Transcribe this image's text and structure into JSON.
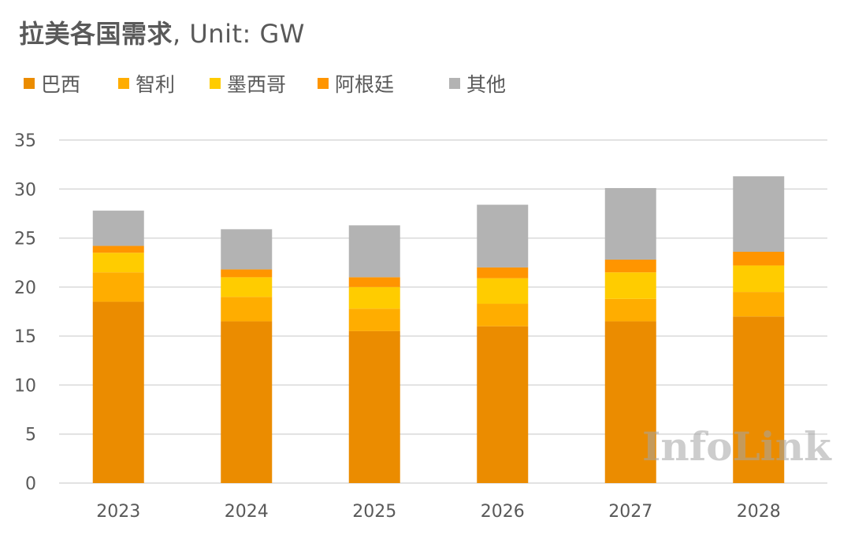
{
  "chart_data": {
    "type": "bar",
    "stacked": true,
    "title": "拉美各国需求",
    "title_unit": ", Unit: GW",
    "xlabel": "",
    "ylabel": "",
    "ylim": [
      0,
      35
    ],
    "yticks": [
      0,
      5,
      10,
      15,
      20,
      25,
      30,
      35
    ],
    "grid": true,
    "legend_position": "top-left",
    "categories": [
      "2023",
      "2024",
      "2025",
      "2026",
      "2027",
      "2028"
    ],
    "series": [
      {
        "name": "巴西",
        "color": "#EB8C00",
        "values": [
          18.5,
          16.5,
          15.5,
          16.0,
          16.5,
          17.0
        ]
      },
      {
        "name": "智利",
        "color": "#FFAD00",
        "values": [
          3.0,
          2.5,
          2.3,
          2.3,
          2.3,
          2.5
        ]
      },
      {
        "name": "墨西哥",
        "color": "#FFCC00",
        "values": [
          2.0,
          2.0,
          2.2,
          2.6,
          2.7,
          2.7
        ]
      },
      {
        "name": "阿根廷",
        "color": "#FF9500",
        "values": [
          0.7,
          0.8,
          1.0,
          1.1,
          1.3,
          1.4
        ]
      },
      {
        "name": "其他",
        "color": "#B3B3B3",
        "values": [
          3.6,
          4.1,
          5.3,
          6.4,
          7.3,
          7.7
        ]
      }
    ],
    "watermark": "InfoLink"
  }
}
